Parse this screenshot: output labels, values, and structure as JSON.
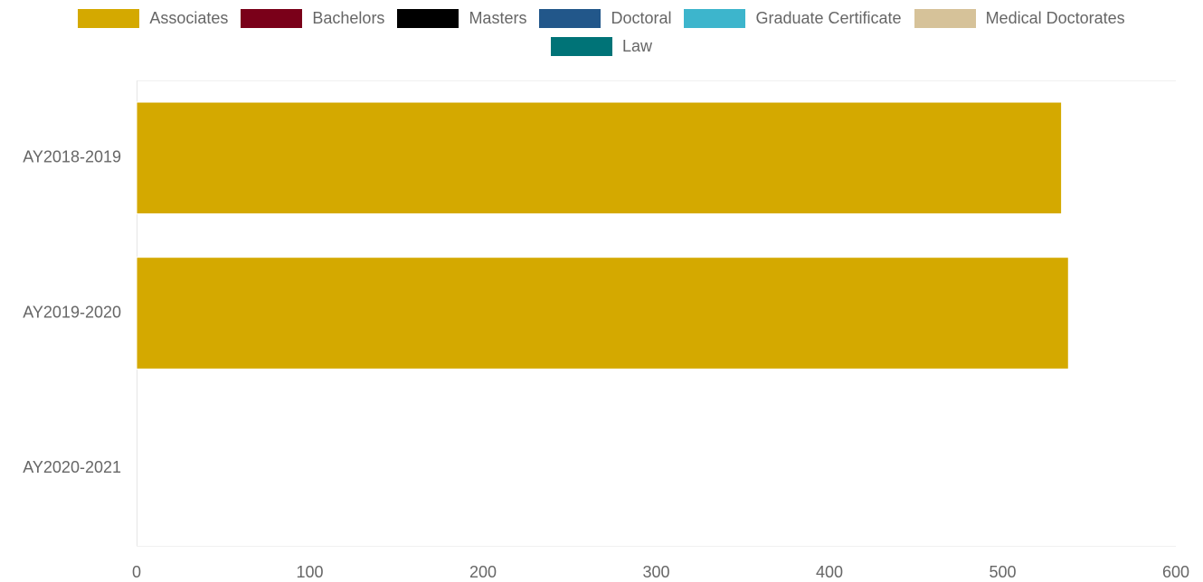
{
  "chart_data": {
    "type": "bar",
    "orientation": "horizontal",
    "categories": [
      "AY2018-2019",
      "AY2019-2020",
      "AY2020-2021"
    ],
    "series": [
      {
        "name": "Associates",
        "color": "#d4a900",
        "values": [
          534,
          538,
          0
        ]
      },
      {
        "name": "Bachelors",
        "color": "#7a0019",
        "values": [
          0,
          0,
          0
        ]
      },
      {
        "name": "Masters",
        "color": "#000000",
        "values": [
          0,
          0,
          0
        ]
      },
      {
        "name": "Doctoral",
        "color": "#22578a",
        "values": [
          0,
          0,
          0
        ]
      },
      {
        "name": "Graduate Certificate",
        "color": "#3db5cc",
        "values": [
          0,
          0,
          0
        ]
      },
      {
        "name": "Medical Doctorates",
        "color": "#d6c299",
        "values": [
          0,
          0,
          0
        ]
      },
      {
        "name": "Law",
        "color": "#007377",
        "values": [
          0,
          0,
          0
        ]
      }
    ],
    "xlim": [
      0,
      600
    ],
    "x_ticks": [
      0,
      100,
      200,
      300,
      400,
      500,
      600
    ],
    "stacked": true,
    "legend_position": "top",
    "grid": false
  }
}
